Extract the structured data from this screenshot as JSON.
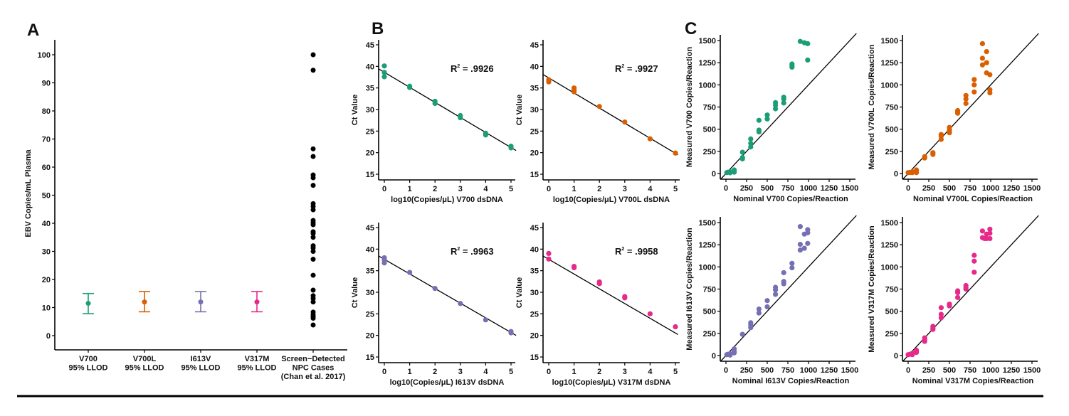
{
  "figure": {
    "bottom_rule": true
  },
  "chart_data": [
    {
      "id": "A",
      "panel_letter": "A",
      "type": "scatter",
      "title": "",
      "xlabel": "",
      "ylabel": "EBV Copies/mL Plasma",
      "ylim": [
        -5,
        105
      ],
      "yticks": [
        0,
        10,
        20,
        30,
        40,
        50,
        60,
        70,
        80,
        90,
        100
      ],
      "categories": [
        {
          "line1": "V700",
          "line2": "95% LLOD",
          "line3": ""
        },
        {
          "line1": "V700L",
          "line2": "95% LLOD",
          "line3": ""
        },
        {
          "line1": "I613V",
          "line2": "95% LLOD",
          "line3": ""
        },
        {
          "line1": "V317M",
          "line2": "95% LLOD",
          "line3": ""
        },
        {
          "line1": "Screen−Detected",
          "line2": "NPC Cases",
          "line3": "(Chan et al. 2017)"
        }
      ],
      "errorbars": [
        {
          "category": 0,
          "mean": 11.5,
          "low": 7.8,
          "high": 15.0,
          "color": "#1b9e77"
        },
        {
          "category": 1,
          "mean": 12.0,
          "low": 8.5,
          "high": 15.7,
          "color": "#d95f02"
        },
        {
          "category": 2,
          "mean": 12.0,
          "low": 8.5,
          "high": 15.7,
          "color": "#7570b3"
        },
        {
          "category": 3,
          "mean": 12.0,
          "low": 8.5,
          "high": 15.7,
          "color": "#e7298a"
        }
      ],
      "points": {
        "category": 4,
        "color": "#000000",
        "values": [
          100,
          94.5,
          66.5,
          63.8,
          57.2,
          56.2,
          53.5,
          47,
          46,
          44.8,
          41,
          40.2,
          39.5,
          37,
          36.4,
          35,
          32,
          31.2,
          30,
          27.2,
          21.5,
          16.2,
          14.2,
          13.2,
          12,
          8.4,
          7.5,
          6.8,
          6.2,
          3.8
        ]
      }
    },
    {
      "id": "B1",
      "panel_letter": "B",
      "type": "scatter",
      "xlabel": "log10(Copies/μL) V700 dsDNA",
      "ylabel": "Ct Value",
      "xlim": [
        -0.25,
        5.2
      ],
      "ylim": [
        13.5,
        46.5
      ],
      "xticks": [
        0,
        1,
        2,
        3,
        4,
        5
      ],
      "yticks": [
        15,
        20,
        25,
        30,
        35,
        40,
        45
      ],
      "color": "#1b9e77",
      "r2_label": "R",
      "r2_sup": "2",
      "r2_value": " = .9926",
      "fit": {
        "x0": -0.25,
        "y0": 39.5,
        "x1": 5.2,
        "y1": 20.5
      },
      "points": [
        [
          0,
          40.1
        ],
        [
          0,
          38.6
        ],
        [
          0,
          37.6
        ],
        [
          1,
          35.4
        ],
        [
          1,
          35.1
        ],
        [
          2,
          31.9
        ],
        [
          2,
          31.4
        ],
        [
          3,
          28.6
        ],
        [
          3,
          28.1
        ],
        [
          4,
          24.5
        ],
        [
          4,
          24.1
        ],
        [
          5,
          21.5
        ],
        [
          5,
          21.1
        ]
      ]
    },
    {
      "id": "B2",
      "panel_letter": "",
      "type": "scatter",
      "xlabel": "log10(Copies/μL) V700L dsDNA",
      "ylabel": "Ct Value",
      "xlim": [
        -0.25,
        5.2
      ],
      "ylim": [
        13.5,
        46.5
      ],
      "xticks": [
        0,
        1,
        2,
        3,
        4,
        5
      ],
      "yticks": [
        15,
        20,
        25,
        30,
        35,
        40,
        45
      ],
      "color": "#d95f02",
      "r2_label": "R",
      "r2_sup": "2",
      "r2_value": " = .9927",
      "fit": {
        "x0": -0.25,
        "y0": 38.2,
        "x1": 5.1,
        "y1": 19.5
      },
      "points": [
        [
          0,
          36.9
        ],
        [
          0,
          36.4
        ],
        [
          1,
          35.0
        ],
        [
          1,
          34.5
        ],
        [
          1,
          34.1
        ],
        [
          2,
          30.7
        ],
        [
          3,
          27.1
        ],
        [
          4,
          23.2
        ],
        [
          5,
          19.9
        ]
      ]
    },
    {
      "id": "B3",
      "panel_letter": "",
      "type": "scatter",
      "xlabel": "log10(Copies/μL) I613V dsDNA",
      "ylabel": "Ct Value",
      "xlim": [
        -0.25,
        5.2
      ],
      "ylim": [
        13.5,
        46.5
      ],
      "xticks": [
        0,
        1,
        2,
        3,
        4,
        5
      ],
      "yticks": [
        15,
        20,
        25,
        30,
        35,
        40,
        45
      ],
      "color": "#7570b3",
      "r2_label": "R",
      "r2_sup": "2",
      "r2_value": " = .9963",
      "fit": {
        "x0": -0.25,
        "y0": 38.5,
        "x1": 5.2,
        "y1": 20.0
      },
      "points": [
        [
          0,
          38.0
        ],
        [
          0,
          37.5
        ],
        [
          0,
          36.8
        ],
        [
          1,
          34.6
        ],
        [
          2,
          30.9
        ],
        [
          3,
          27.4
        ],
        [
          4,
          23.6
        ],
        [
          5,
          20.9
        ],
        [
          5,
          20.6
        ]
      ]
    },
    {
      "id": "B4",
      "panel_letter": "",
      "type": "scatter",
      "xlabel": "log10(Copies/μL) V317M dsDNA",
      "ylabel": "Ct Value",
      "xlim": [
        -0.25,
        5.2
      ],
      "ylim": [
        13.5,
        46.5
      ],
      "xticks": [
        0,
        1,
        2,
        3,
        4,
        5
      ],
      "yticks": [
        15,
        20,
        25,
        30,
        35,
        40,
        45
      ],
      "color": "#e7298a",
      "r2_label": "R",
      "r2_sup": "2",
      "r2_value": " = .9958",
      "fit": {
        "x0": -0.25,
        "y0": 38.5,
        "x1": 5.1,
        "y1": 20.2
      },
      "points": [
        [
          0,
          39.0
        ],
        [
          0,
          37.7
        ],
        [
          1,
          36.0
        ],
        [
          1,
          35.7
        ],
        [
          2,
          32.4
        ],
        [
          2,
          32.0
        ],
        [
          3,
          29.0
        ],
        [
          3,
          28.7
        ],
        [
          4,
          25.0
        ],
        [
          5,
          22.0
        ]
      ]
    },
    {
      "id": "C1",
      "panel_letter": "C",
      "type": "scatter",
      "xlabel": "Nominal V700 Copies/Reaction",
      "ylabel": "Measured V700 Copies/Reaction",
      "xlim": [
        -70,
        1580
      ],
      "ylim": [
        -70,
        1580
      ],
      "xticks": [
        0,
        250,
        500,
        750,
        1000,
        1250,
        1500
      ],
      "yticks": [
        0,
        250,
        500,
        750,
        1000,
        1250,
        1500
      ],
      "color": "#1b9e77",
      "identity_line": true,
      "points": [
        [
          10,
          10
        ],
        [
          25,
          15
        ],
        [
          50,
          8
        ],
        [
          50,
          20
        ],
        [
          100,
          40
        ],
        [
          100,
          25
        ],
        [
          100,
          15
        ],
        [
          200,
          240
        ],
        [
          200,
          180
        ],
        [
          200,
          165
        ],
        [
          300,
          390
        ],
        [
          300,
          340
        ],
        [
          300,
          300
        ],
        [
          400,
          600
        ],
        [
          400,
          490
        ],
        [
          400,
          470
        ],
        [
          500,
          660
        ],
        [
          500,
          615
        ],
        [
          600,
          800
        ],
        [
          600,
          770
        ],
        [
          600,
          730
        ],
        [
          700,
          860
        ],
        [
          700,
          840
        ],
        [
          700,
          795
        ],
        [
          800,
          1235
        ],
        [
          800,
          1215
        ],
        [
          800,
          1200
        ],
        [
          900,
          1490
        ],
        [
          950,
          1475
        ],
        [
          990,
          1465
        ],
        [
          990,
          1280
        ]
      ]
    },
    {
      "id": "C2",
      "panel_letter": "",
      "type": "scatter",
      "xlabel": "Nominal V700L Copies/Reaction",
      "ylabel": "Measured V700L Copies/Reaction",
      "xlim": [
        -70,
        1580
      ],
      "ylim": [
        -70,
        1580
      ],
      "xticks": [
        0,
        250,
        500,
        750,
        1000,
        1250,
        1500
      ],
      "yticks": [
        0,
        250,
        500,
        750,
        1000,
        1250,
        1500
      ],
      "color": "#d95f02",
      "identity_line": true,
      "points": [
        [
          0,
          10
        ],
        [
          25,
          12
        ],
        [
          50,
          10
        ],
        [
          50,
          20
        ],
        [
          100,
          40
        ],
        [
          100,
          25
        ],
        [
          100,
          10
        ],
        [
          200,
          190
        ],
        [
          200,
          175
        ],
        [
          300,
          235
        ],
        [
          300,
          215
        ],
        [
          400,
          440
        ],
        [
          400,
          420
        ],
        [
          400,
          385
        ],
        [
          500,
          520
        ],
        [
          500,
          490
        ],
        [
          500,
          460
        ],
        [
          600,
          710
        ],
        [
          600,
          695
        ],
        [
          600,
          680
        ],
        [
          700,
          880
        ],
        [
          700,
          840
        ],
        [
          700,
          790
        ],
        [
          800,
          1060
        ],
        [
          800,
          1000
        ],
        [
          800,
          920
        ],
        [
          900,
          1465
        ],
        [
          900,
          1300
        ],
        [
          900,
          1225
        ],
        [
          950,
          1375
        ],
        [
          950,
          1250
        ],
        [
          950,
          1135
        ],
        [
          990,
          1115
        ],
        [
          990,
          945
        ],
        [
          990,
          910
        ]
      ]
    },
    {
      "id": "C3",
      "panel_letter": "",
      "type": "scatter",
      "xlabel": "Nominal I613V Copies/Reaction",
      "ylabel": "Measured I613V Copies/Reaction",
      "xlim": [
        -70,
        1580
      ],
      "ylim": [
        -70,
        1580
      ],
      "xticks": [
        0,
        250,
        500,
        750,
        1000,
        1250,
        1500
      ],
      "yticks": [
        0,
        250,
        500,
        750,
        1000,
        1250,
        1500
      ],
      "color": "#7570b3",
      "identity_line": true,
      "points": [
        [
          10,
          10
        ],
        [
          25,
          15
        ],
        [
          50,
          5
        ],
        [
          50,
          20
        ],
        [
          100,
          75
        ],
        [
          100,
          45
        ],
        [
          100,
          30
        ],
        [
          200,
          240
        ],
        [
          300,
          370
        ],
        [
          300,
          345
        ],
        [
          300,
          315
        ],
        [
          400,
          525
        ],
        [
          400,
          480
        ],
        [
          500,
          620
        ],
        [
          500,
          550
        ],
        [
          600,
          770
        ],
        [
          600,
          740
        ],
        [
          600,
          690
        ],
        [
          700,
          935
        ],
        [
          700,
          835
        ],
        [
          700,
          810
        ],
        [
          800,
          1040
        ],
        [
          800,
          990
        ],
        [
          900,
          1455
        ],
        [
          900,
          1255
        ],
        [
          900,
          1190
        ],
        [
          950,
          1370
        ],
        [
          950,
          1210
        ],
        [
          990,
          1420
        ],
        [
          990,
          1385
        ],
        [
          990,
          1265
        ]
      ]
    },
    {
      "id": "C4",
      "panel_letter": "",
      "type": "scatter",
      "xlabel": "Nominal V317M Copies/Reaction",
      "ylabel": "Measured V317M Copies/Reaction",
      "xlim": [
        -70,
        1580
      ],
      "ylim": [
        -70,
        1580
      ],
      "xticks": [
        0,
        250,
        500,
        750,
        1000,
        1250,
        1500
      ],
      "yticks": [
        0,
        250,
        500,
        750,
        1000,
        1250,
        1500
      ],
      "color": "#e7298a",
      "identity_line": true,
      "points": [
        [
          0,
          10
        ],
        [
          25,
          15
        ],
        [
          50,
          10
        ],
        [
          50,
          25
        ],
        [
          100,
          60
        ],
        [
          100,
          45
        ],
        [
          100,
          35
        ],
        [
          200,
          200
        ],
        [
          200,
          175
        ],
        [
          200,
          160
        ],
        [
          300,
          330
        ],
        [
          300,
          310
        ],
        [
          300,
          295
        ],
        [
          400,
          540
        ],
        [
          400,
          465
        ],
        [
          400,
          425
        ],
        [
          500,
          580
        ],
        [
          500,
          560
        ],
        [
          600,
          730
        ],
        [
          600,
          710
        ],
        [
          600,
          655
        ],
        [
          700,
          790
        ],
        [
          700,
          765
        ],
        [
          700,
          750
        ],
        [
          800,
          1130
        ],
        [
          800,
          1065
        ],
        [
          800,
          940
        ],
        [
          900,
          1405
        ],
        [
          900,
          1330
        ],
        [
          925,
          1320
        ],
        [
          950,
          1370
        ],
        [
          950,
          1320
        ],
        [
          990,
          1425
        ],
        [
          990,
          1380
        ],
        [
          990,
          1320
        ]
      ]
    }
  ]
}
